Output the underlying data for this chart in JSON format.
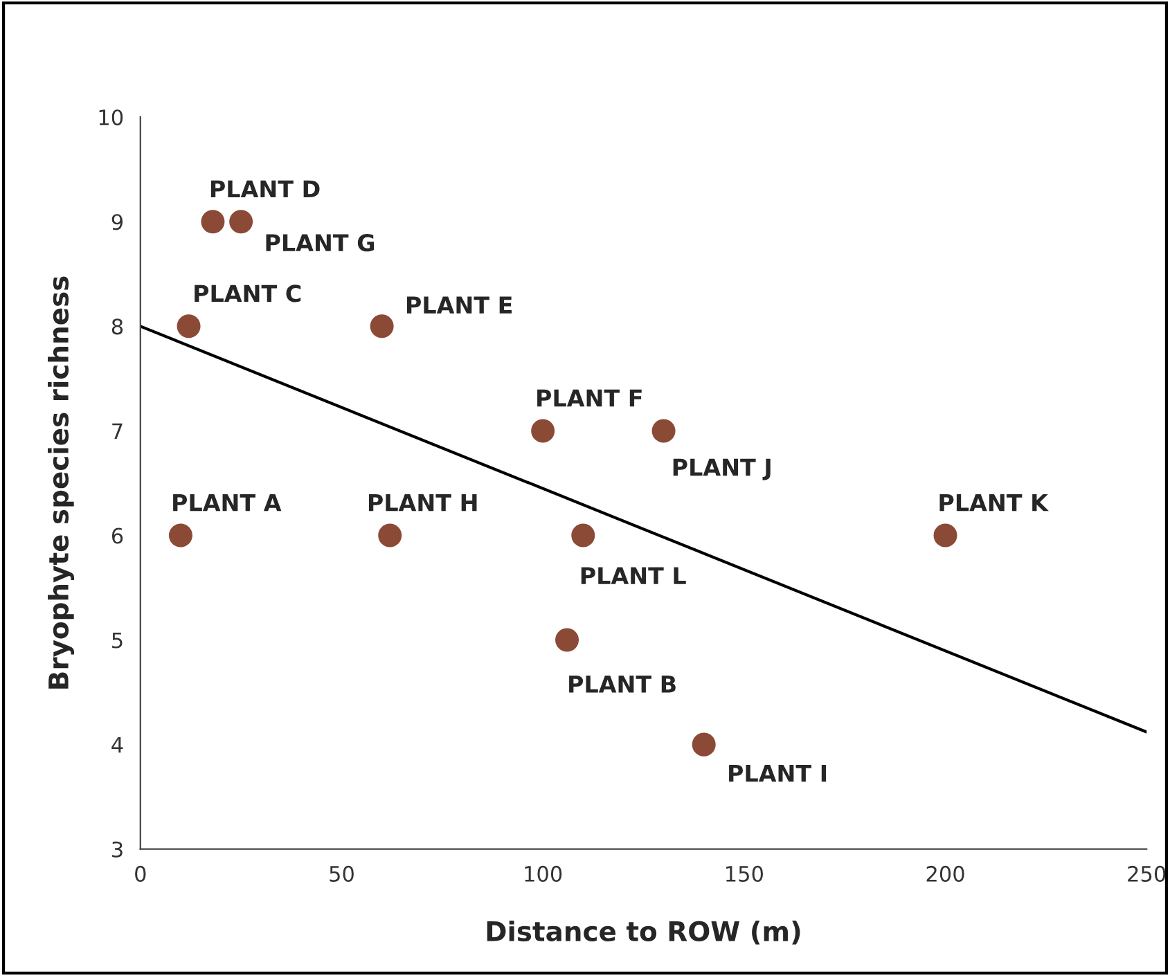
{
  "chart_data": {
    "type": "scatter",
    "xlabel": "Distance to ROW (m)",
    "ylabel": "Bryophyte species richness",
    "xlim": [
      0,
      250
    ],
    "xticks": [
      0,
      50,
      100,
      150,
      200,
      250
    ],
    "ylim": [
      3,
      10
    ],
    "yticks": [
      3,
      4,
      5,
      6,
      7,
      8,
      9,
      10
    ],
    "grid": false,
    "marker": "circle",
    "series": [
      {
        "color": "#8b4a36",
        "x": [
          10,
          106,
          12,
          18,
          60,
          100,
          25,
          62,
          140,
          130,
          200,
          110
        ],
        "values": [
          6,
          5,
          8,
          9,
          8,
          7,
          9,
          6,
          4,
          7,
          6,
          6
        ]
      },
      {
        "type": "line",
        "color": "#000000",
        "line_style": "solid",
        "marker": "none",
        "x": [
          0,
          250
        ],
        "values": [
          8.0,
          4.12
        ]
      }
    ],
    "annotations": [
      {
        "text": "PLANT A",
        "x": 10,
        "y": 6
      },
      {
        "text": "PLANT B",
        "x": 106,
        "y": 5
      },
      {
        "text": "PLANT C",
        "x": 12,
        "y": 8
      },
      {
        "text": "PLANT D",
        "x": 18,
        "y": 9
      },
      {
        "text": "PLANT E",
        "x": 60,
        "y": 8
      },
      {
        "text": "PLANT F",
        "x": 100,
        "y": 7
      },
      {
        "text": "PLANT G",
        "x": 25,
        "y": 9
      },
      {
        "text": "PLANT H",
        "x": 62,
        "y": 6
      },
      {
        "text": "PLANT I",
        "x": 140,
        "y": 4
      },
      {
        "text": "PLANT J",
        "x": 130,
        "y": 7
      },
      {
        "text": "PLANT K",
        "x": 200,
        "y": 6
      },
      {
        "text": "PLANT L",
        "x": 110,
        "y": 6
      }
    ]
  }
}
